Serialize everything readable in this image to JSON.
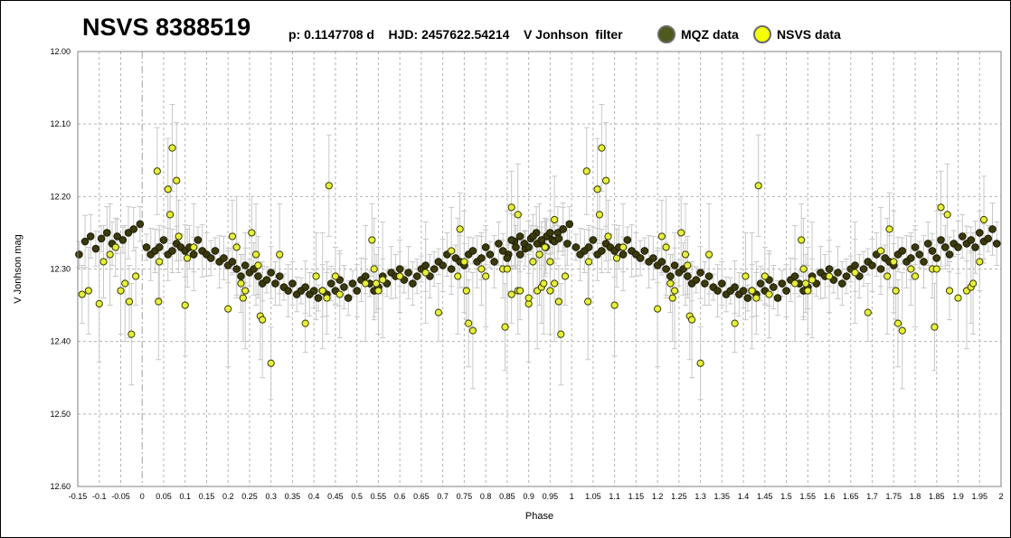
{
  "title": "NSVS 8388519",
  "ephemeris": "p: 0.1147708 d    HJD: 2457622.54214    V Jonhson  filter",
  "colors": {
    "mqz": "#3b3a0c",
    "nsvs": "#e6f03a",
    "grid": "#b4b4b4",
    "errorbar": "#c8c8c8"
  },
  "chart_data": {
    "type": "scatter",
    "xlabel": "Phase",
    "ylabel": "V Jonhson mag",
    "xlim": [
      -0.15,
      2.0
    ],
    "ylim": [
      12.6,
      12.0
    ],
    "y_inverted": true,
    "grid": true,
    "legend_position": "top-right",
    "xticks": [
      "-0.15",
      "-0.1",
      "-0.05",
      "0",
      "0.05",
      "0.1",
      "0.15",
      "0.2",
      "0.25",
      "0.3",
      "0.35",
      "0.4",
      "0.45",
      "0.5",
      "0.55",
      "0.6",
      "0.65",
      "0.7",
      "0.75",
      "0.8",
      "0.85",
      "0.9",
      "0.95",
      "1",
      "1.05",
      "1.1",
      "1.15",
      "1.2",
      "1.25",
      "1.3",
      "1.35",
      "1.4",
      "1.45",
      "1.5",
      "1.55",
      "1.6",
      "1.65",
      "1.7",
      "1.75",
      "1.8",
      "1.85",
      "1.9",
      "1.95",
      "2"
    ],
    "yticks": [
      "12.00",
      "12.10",
      "12.20",
      "12.30",
      "12.40",
      "12.50",
      "12.60"
    ],
    "series": [
      {
        "name": "MQZ data",
        "x": [
          -0.147,
          -0.133,
          -0.12,
          -0.108,
          -0.095,
          -0.082,
          -0.07,
          -0.058,
          -0.045,
          -0.032,
          -0.02,
          -0.005,
          0.01,
          0.02,
          0.03,
          0.04,
          0.05,
          0.06,
          0.07,
          0.08,
          0.09,
          0.1,
          0.11,
          0.12,
          0.13,
          0.14,
          0.15,
          0.16,
          0.17,
          0.18,
          0.19,
          0.2,
          0.21,
          0.22,
          0.23,
          0.24,
          0.25,
          0.26,
          0.27,
          0.28,
          0.29,
          0.3,
          0.31,
          0.32,
          0.33,
          0.34,
          0.35,
          0.36,
          0.37,
          0.38,
          0.39,
          0.4,
          0.41,
          0.42,
          0.43,
          0.44,
          0.45,
          0.46,
          0.47,
          0.48,
          0.49,
          0.5,
          0.51,
          0.52,
          0.53,
          0.54,
          0.55,
          0.56,
          0.57,
          0.58,
          0.59,
          0.6,
          0.61,
          0.62,
          0.63,
          0.64,
          0.65,
          0.66,
          0.67,
          0.68,
          0.69,
          0.7,
          0.71,
          0.72,
          0.73,
          0.74,
          0.75,
          0.76,
          0.77,
          0.78,
          0.79,
          0.8,
          0.81,
          0.82,
          0.83,
          0.84,
          0.85,
          0.86,
          0.87,
          0.88,
          0.89,
          0.9,
          0.91,
          0.92,
          0.93,
          0.94,
          0.95,
          0.96,
          0.97,
          0.98,
          0.99
        ],
        "y": [
          12.28,
          12.262,
          12.255,
          12.272,
          12.258,
          12.25,
          12.265,
          12.255,
          12.26,
          12.25,
          12.245,
          12.238,
          12.27,
          12.28,
          12.275,
          12.27,
          12.26,
          12.28,
          12.275,
          12.265,
          12.27,
          12.275,
          12.27,
          12.28,
          12.26,
          12.275,
          12.28,
          12.285,
          12.275,
          12.29,
          12.285,
          12.295,
          12.29,
          12.3,
          12.31,
          12.295,
          12.305,
          12.3,
          12.31,
          12.32,
          12.315,
          12.305,
          12.32,
          12.31,
          12.325,
          12.33,
          12.32,
          12.335,
          12.33,
          12.325,
          12.335,
          12.33,
          12.34,
          12.33,
          12.335,
          12.32,
          12.33,
          12.315,
          12.325,
          12.34,
          12.32,
          12.33,
          12.315,
          12.31,
          12.32,
          12.33,
          12.325,
          12.31,
          12.32,
          12.305,
          12.31,
          12.3,
          12.315,
          12.305,
          12.32,
          12.31,
          12.3,
          12.295,
          12.31,
          12.3,
          12.29,
          12.295,
          12.28,
          12.3,
          12.285,
          12.29,
          12.295,
          12.28,
          12.275,
          12.29,
          12.285,
          12.27,
          12.28,
          12.29,
          12.265,
          12.275,
          12.285,
          12.26,
          12.27,
          12.28,
          12.265,
          12.27,
          12.255,
          12.265,
          12.26,
          12.27,
          12.25,
          12.262,
          12.258,
          12.245,
          12.265
        ]
      },
      {
        "name": "NSVS data",
        "x": [
          -0.14,
          -0.125,
          -0.1,
          -0.09,
          -0.075,
          -0.062,
          -0.05,
          -0.04,
          -0.03,
          -0.025,
          -0.015,
          0.035,
          0.038,
          0.04,
          0.06,
          0.065,
          0.07,
          0.08,
          0.085,
          0.1,
          0.105,
          0.12,
          0.2,
          0.21,
          0.22,
          0.23,
          0.235,
          0.24,
          0.255,
          0.265,
          0.27,
          0.275,
          0.28,
          0.3,
          0.32,
          0.38,
          0.405,
          0.42,
          0.43,
          0.435,
          0.45,
          0.46,
          0.52,
          0.535,
          0.54,
          0.545,
          0.55,
          0.56,
          0.6,
          0.66,
          0.69,
          0.72,
          0.735,
          0.74,
          0.75,
          0.755,
          0.76,
          0.77,
          0.79,
          0.8,
          0.84,
          0.845,
          0.85,
          0.86,
          0.875,
          0.88,
          0.9,
          0.92,
          0.93,
          0.935,
          0.95,
          0.96
        ],
        "y": [
          12.335,
          12.33,
          12.348,
          12.29,
          12.28,
          12.27,
          12.33,
          12.32,
          12.345,
          12.39,
          12.31,
          12.165,
          12.345,
          12.29,
          12.19,
          12.225,
          12.133,
          12.178,
          12.255,
          12.35,
          12.285,
          12.27,
          12.355,
          12.255,
          12.27,
          12.32,
          12.34,
          12.33,
          12.25,
          12.28,
          12.295,
          12.365,
          12.37,
          12.43,
          12.28,
          12.375,
          12.31,
          12.33,
          12.34,
          12.185,
          12.31,
          12.335,
          12.32,
          12.26,
          12.3,
          12.32,
          12.33,
          12.315,
          12.31,
          12.305,
          12.36,
          12.275,
          12.31,
          12.245,
          12.29,
          12.33,
          12.375,
          12.385,
          12.3,
          12.31,
          12.3,
          12.38,
          12.3,
          12.215,
          12.225,
          12.33,
          12.34,
          12.33,
          12.325,
          12.32,
          12.29,
          12.232
        ]
      }
    ]
  }
}
